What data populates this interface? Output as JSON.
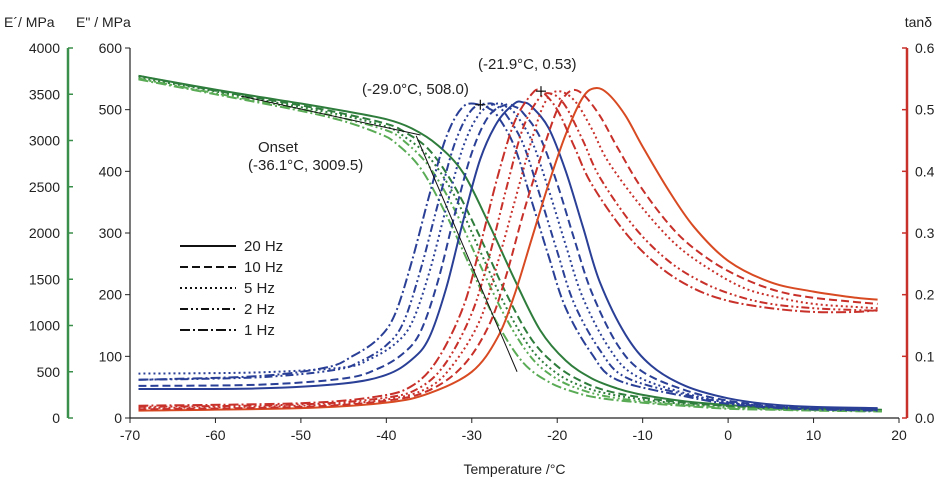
{
  "chart_data": {
    "type": "line",
    "xlabel": "Temperature /°C",
    "xlim": [
      -70,
      20
    ],
    "x_ticks": [
      -70,
      -60,
      -50,
      -40,
      -30,
      -20,
      -10,
      0,
      10,
      20
    ],
    "axes": {
      "e_prime": {
        "label": "E´/ MPa",
        "lim": [
          0,
          4000
        ],
        "ticks": [
          0,
          500,
          1000,
          1500,
          2000,
          2500,
          3000,
          3500,
          4000
        ],
        "color": "#3a8f4a"
      },
      "e_double_prime": {
        "label": "E\" / MPa",
        "lim": [
          0,
          600
        ],
        "ticks": [
          0,
          100,
          200,
          300,
          400,
          500,
          600
        ],
        "color": "#222222"
      },
      "tan_delta": {
        "label": "tanδ",
        "lim": [
          0,
          0.6
        ],
        "ticks": [
          "0.0",
          "0.1",
          "0.2",
          "0.3",
          "0.4",
          "0.5",
          "0.6"
        ],
        "color": "#c8302a"
      }
    },
    "colors": {
      "e_prime": "#2f7d3c",
      "e_prime_low_freq": "#5aab55",
      "e_double_prime": "#2a3f96",
      "tan_delta": "#c8302a",
      "tan_delta_20hz": "#d84a22"
    },
    "legend": {
      "placement": "center-left",
      "entries": [
        {
          "label": "20 Hz",
          "dash": "solid"
        },
        {
          "label": "10 Hz",
          "dash": "dashed"
        },
        {
          "label": "5 Hz",
          "dash": "dotted"
        },
        {
          "label": "2 Hz",
          "dash": "dash-dot-dot"
        },
        {
          "label": "1 Hz",
          "dash": "dash-dot"
        }
      ]
    },
    "series": [
      {
        "name": "20 Hz",
        "quantity": "E'",
        "axis": "e_prime",
        "x": [
          -69,
          -60,
          -50,
          -45,
          -40,
          -37,
          -34,
          -31,
          -28,
          -25,
          -22,
          -19,
          -16,
          -13,
          -10,
          -5,
          0,
          5,
          10,
          18
        ],
        "y": [
          3700,
          3550,
          3400,
          3320,
          3230,
          3130,
          2950,
          2650,
          2100,
          1500,
          950,
          620,
          430,
          320,
          250,
          180,
          140,
          115,
          100,
          90
        ]
      },
      {
        "name": "10 Hz",
        "quantity": "E'",
        "axis": "e_prime",
        "x": [
          -69,
          -60,
          -50,
          -45,
          -40,
          -38,
          -35,
          -32,
          -29,
          -26,
          -23,
          -20,
          -17,
          -14,
          -10,
          -5,
          0,
          5,
          10,
          18
        ],
        "y": [
          3700,
          3540,
          3380,
          3290,
          3180,
          3100,
          2900,
          2500,
          1950,
          1350,
          850,
          560,
          390,
          290,
          220,
          165,
          130,
          110,
          95,
          85
        ]
      },
      {
        "name": "5 Hz",
        "quantity": "E'",
        "axis": "e_prime",
        "x": [
          -69,
          -60,
          -50,
          -45,
          -40,
          -38,
          -35,
          -32,
          -29,
          -26,
          -23,
          -20,
          -17,
          -14,
          -10,
          -5,
          0,
          5,
          10,
          18
        ],
        "y": [
          3680,
          3530,
          3360,
          3270,
          3150,
          3050,
          2820,
          2400,
          1800,
          1200,
          740,
          480,
          340,
          260,
          200,
          150,
          120,
          100,
          90,
          80
        ]
      },
      {
        "name": "2 Hz",
        "quantity": "E'",
        "axis": "e_prime",
        "x": [
          -69,
          -60,
          -50,
          -45,
          -40,
          -38,
          -35,
          -32,
          -29,
          -26,
          -23,
          -20,
          -17,
          -14,
          -10,
          -5,
          0,
          5,
          10,
          18
        ],
        "y": [
          3670,
          3510,
          3340,
          3240,
          3110,
          3000,
          2720,
          2250,
          1650,
          1080,
          650,
          420,
          300,
          230,
          180,
          140,
          110,
          95,
          85,
          75
        ]
      },
      {
        "name": "1 Hz",
        "quantity": "E'",
        "axis": "e_prime",
        "x": [
          -69,
          -60,
          -50,
          -45,
          -41,
          -39,
          -36,
          -33,
          -30,
          -27,
          -24,
          -21,
          -18,
          -15,
          -10,
          -5,
          0,
          5,
          10,
          18
        ],
        "y": [
          3660,
          3500,
          3320,
          3210,
          3080,
          2980,
          2700,
          2200,
          1600,
          1020,
          600,
          390,
          280,
          215,
          165,
          130,
          100,
          90,
          80,
          70
        ]
      },
      {
        "name": "20 Hz",
        "quantity": "E\"",
        "axis": "e_double_prime",
        "x": [
          -69,
          -55,
          -45,
          -40,
          -37,
          -35,
          -33,
          -31,
          -29,
          -27,
          -25,
          -24,
          -23,
          -21,
          -19,
          -17,
          -15,
          -12,
          -9,
          -5,
          0,
          5,
          10,
          17.5
        ],
        "y": [
          47,
          48,
          56,
          70,
          95,
          130,
          210,
          320,
          420,
          480,
          510,
          512,
          505,
          470,
          400,
          310,
          220,
          135,
          85,
          52,
          32,
          22,
          18,
          16
        ]
      },
      {
        "name": "10 Hz",
        "quantity": "E\"",
        "axis": "e_double_prime",
        "x": [
          -69,
          -55,
          -45,
          -41,
          -38,
          -36,
          -34,
          -32,
          -30,
          -28,
          -26,
          -25,
          -24,
          -22,
          -20,
          -18,
          -16,
          -13,
          -10,
          -5,
          0,
          5,
          10,
          17.5
        ],
        "y": [
          52,
          54,
          64,
          80,
          105,
          140,
          220,
          330,
          430,
          490,
          508,
          505,
          495,
          455,
          380,
          290,
          205,
          120,
          75,
          45,
          28,
          20,
          17,
          15
        ]
      },
      {
        "name": "5 Hz",
        "quantity": "E\"",
        "axis": "e_double_prime",
        "x": [
          -69,
          -55,
          -45,
          -42,
          -39,
          -37,
          -35,
          -33,
          -31,
          -29,
          -27,
          -26,
          -25,
          -23,
          -21,
          -19,
          -17,
          -14,
          -11,
          -5,
          0,
          5,
          10,
          17.5
        ],
        "y": [
          72,
          74,
          82,
          95,
          120,
          155,
          235,
          340,
          440,
          495,
          510,
          505,
          495,
          450,
          370,
          280,
          195,
          115,
          70,
          40,
          26,
          19,
          16,
          14
        ]
      },
      {
        "name": "2 Hz",
        "quantity": "E\"",
        "axis": "e_double_prime",
        "x": [
          -69,
          -55,
          -46,
          -43,
          -40,
          -38,
          -36,
          -34,
          -32,
          -30,
          -28,
          -27,
          -26,
          -24,
          -22,
          -20,
          -18,
          -15,
          -12,
          -5,
          0,
          5,
          10,
          17.5
        ],
        "y": [
          62,
          66,
          78,
          92,
          118,
          155,
          240,
          345,
          445,
          500,
          510,
          505,
          492,
          445,
          360,
          270,
          185,
          110,
          66,
          38,
          25,
          18,
          15,
          13
        ]
      },
      {
        "name": "1 Hz",
        "quantity": "E\"",
        "axis": "e_double_prime",
        "x": [
          -69,
          -55,
          -47,
          -44,
          -41,
          -39,
          -37,
          -35,
          -33,
          -31,
          -29,
          -28,
          -27,
          -25,
          -23,
          -21,
          -19,
          -16,
          -13,
          -5,
          0,
          5,
          10,
          17.5
        ],
        "y": [
          62,
          68,
          82,
          100,
          128,
          168,
          255,
          360,
          455,
          505,
          508,
          502,
          490,
          440,
          352,
          262,
          178,
          105,
          62,
          35,
          23,
          17,
          14,
          12
        ]
      },
      {
        "name": "20 Hz",
        "quantity": "tanδ",
        "axis": "tan_delta",
        "x": [
          -69,
          -50,
          -40,
          -35,
          -30,
          -27,
          -25,
          -23,
          -21,
          -19,
          -17,
          -15.5,
          -14,
          -12,
          -10,
          -7,
          -4,
          0,
          5,
          10,
          15,
          17.5
        ],
        "y": [
          0.012,
          0.016,
          0.025,
          0.04,
          0.075,
          0.13,
          0.2,
          0.29,
          0.38,
          0.46,
          0.52,
          0.535,
          0.525,
          0.49,
          0.44,
          0.37,
          0.31,
          0.255,
          0.22,
          0.205,
          0.195,
          0.192
        ]
      },
      {
        "name": "10 Hz",
        "quantity": "tanδ",
        "axis": "tan_delta",
        "x": [
          -69,
          -50,
          -40,
          -35,
          -31,
          -28,
          -26,
          -24,
          -22,
          -20,
          -18.5,
          -17,
          -15,
          -13,
          -10,
          -6,
          -2,
          2,
          6,
          10,
          15,
          17.5
        ],
        "y": [
          0.014,
          0.018,
          0.028,
          0.045,
          0.085,
          0.15,
          0.23,
          0.33,
          0.42,
          0.5,
          0.53,
          0.525,
          0.49,
          0.44,
          0.37,
          0.3,
          0.255,
          0.225,
          0.205,
          0.195,
          0.188,
          0.185
        ]
      },
      {
        "name": "5 Hz",
        "quantity": "tanδ",
        "axis": "tan_delta",
        "x": [
          -69,
          -50,
          -40,
          -35,
          -32,
          -29,
          -27,
          -25,
          -23,
          -21.5,
          -20,
          -18,
          -16,
          -14,
          -10,
          -6,
          -2,
          2,
          6,
          10,
          15,
          17.5
        ],
        "y": [
          0.016,
          0.02,
          0.03,
          0.05,
          0.09,
          0.16,
          0.25,
          0.35,
          0.45,
          0.51,
          0.53,
          0.515,
          0.47,
          0.415,
          0.34,
          0.28,
          0.24,
          0.21,
          0.195,
          0.185,
          0.18,
          0.178
        ]
      },
      {
        "name": "2 Hz",
        "quantity": "tanδ",
        "axis": "tan_delta",
        "x": [
          -69,
          -50,
          -40,
          -36,
          -33,
          -30,
          -28,
          -26,
          -24,
          -22,
          -20.5,
          -19,
          -17,
          -15,
          -11,
          -7,
          -3,
          1,
          5,
          10,
          15,
          17.5
        ],
        "y": [
          0.018,
          0.022,
          0.033,
          0.05,
          0.09,
          0.17,
          0.26,
          0.37,
          0.47,
          0.52,
          0.525,
          0.505,
          0.45,
          0.39,
          0.31,
          0.255,
          0.22,
          0.198,
          0.185,
          0.178,
          0.175,
          0.174
        ]
      },
      {
        "name": "1 Hz",
        "quantity": "tanδ",
        "axis": "tan_delta",
        "x": [
          -69,
          -50,
          -41,
          -37,
          -34,
          -31,
          -29,
          -27,
          -25,
          -23,
          -21.9,
          -20,
          -18,
          -16,
          -12,
          -8,
          -4,
          0,
          5,
          10,
          15,
          17.5
        ],
        "y": [
          0.02,
          0.024,
          0.035,
          0.052,
          0.095,
          0.18,
          0.28,
          0.39,
          0.48,
          0.525,
          0.53,
          0.5,
          0.44,
          0.38,
          0.3,
          0.245,
          0.21,
          0.19,
          0.178,
          0.172,
          0.172,
          0.175
        ]
      }
    ],
    "annotations": [
      {
        "id": "onset",
        "lines": [
          "Onset",
          "(-36.1°C, 3009.5)"
        ],
        "x": -36.1,
        "y": 3009.5
      },
      {
        "id": "e2_peak",
        "text": "(-29.0°C, 508.0)",
        "x": -29.0,
        "y": 508.0
      },
      {
        "id": "tan_peak",
        "text": "(-21.9°C, 0.53)",
        "x": -21.9,
        "y": 0.53
      }
    ],
    "onset_tangents": [
      {
        "x": [
          -57,
          -36
        ],
        "y": [
          3480,
          3060
        ]
      },
      {
        "x": [
          -36.5,
          -24.7
        ],
        "y": [
          3050,
          500
        ]
      }
    ],
    "grid": false
  }
}
